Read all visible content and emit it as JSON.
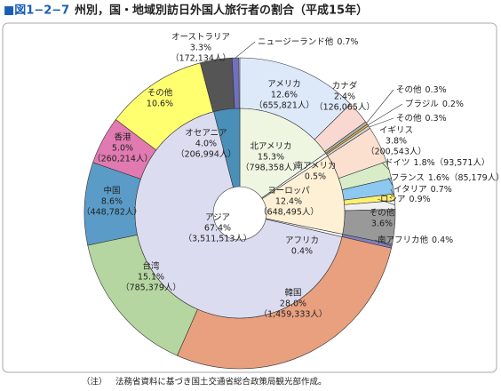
{
  "chart_data": {
    "type": "nested-donut",
    "figure_number": "■図1−2−7",
    "title": "州別，国・地域別訪日外国人旅行者の割合（平成15年）",
    "note_label": "（注）",
    "note": "法務省資料に基づき国土交通省総合政策局観光部作成。",
    "inner": {
      "categories": [
        "北アメリカ",
        "南アメリカ",
        "ヨーロッパ",
        "アフリカ",
        "アジア",
        "オセアニア"
      ],
      "values": [
        15.3,
        0.5,
        12.4,
        0.4,
        67.4,
        4.0
      ],
      "value_labels": [
        "15.3%",
        "0.5%",
        "12.4%",
        "0.4%",
        "67.4%",
        "4.0%"
      ],
      "count_labels": [
        "（798,358人）",
        null,
        "（648,495人）",
        null,
        "（3,511,513人）",
        "（206,994人）"
      ],
      "colors": [
        "#eef6e2",
        "#ffffff",
        "#fdf0d4",
        "#ffffff",
        "#dcdcf0",
        "#4a8fb8"
      ]
    },
    "outer": {
      "categories": [
        "アメリカ",
        "カナダ",
        "その他",
        "ブラジル",
        "その他",
        "イギリス",
        "ドイツ",
        "フランス",
        "イタリア",
        "ロシア",
        "その他",
        "南アフリカ他",
        "韓国",
        "台湾",
        "中国",
        "香港",
        "その他",
        "オーストラリア",
        "ニュージーランド他"
      ],
      "values": [
        12.6,
        2.4,
        0.3,
        0.2,
        0.3,
        3.8,
        1.8,
        1.6,
        0.7,
        0.9,
        3.6,
        0.4,
        28.0,
        15.1,
        8.6,
        5.0,
        10.6,
        3.3,
        0.7
      ],
      "value_labels": [
        "12.6%",
        "2.4%",
        "0.3%",
        "0.2%",
        "0.3%",
        "3.8%",
        "1.8%",
        "1.6%",
        "0.7%",
        "0.9%",
        "3.6%",
        "0.4%",
        "28.0%",
        "15.1%",
        "8.6%",
        "5.0%",
        "10.6%",
        "3.3%",
        "0.7%"
      ],
      "count_labels": [
        "（655,821人）",
        "（126,065人）",
        null,
        null,
        null,
        "（200,543人）",
        "（93,571人）",
        "（85,179人）",
        null,
        null,
        null,
        null,
        "（1,459,333人）",
        "（785,379人）",
        "（448,782人）",
        "（260,214人）",
        null,
        "（172,134人）",
        null
      ],
      "colors": [
        "#dde8f8",
        "#f8d8d0",
        "#b0b0b0",
        "#f0c040",
        "#d0d0d0",
        "#fbe0d0",
        "#d8ecc8",
        "#8cc8f0",
        "#fff070",
        "#f0f0f0",
        "#999999",
        "#8080c0",
        "#e8a07f",
        "#b5d6a0",
        "#5b9bc8",
        "#e07ab0",
        "#ffff70",
        "#555555",
        "#7070c0"
      ]
    }
  }
}
